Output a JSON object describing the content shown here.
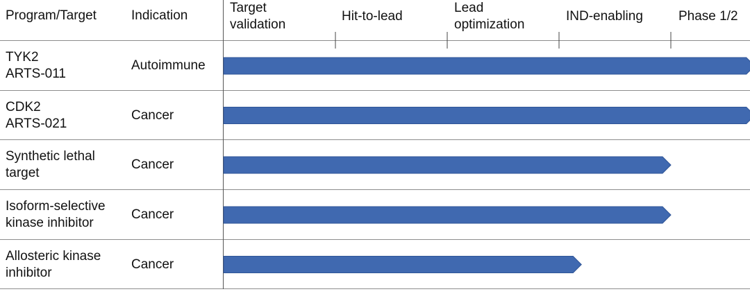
{
  "header": {
    "program": "Program/Target",
    "indication": "Indication"
  },
  "chart_data": {
    "type": "bar",
    "stages": [
      "Target\nvalidation",
      "Hit-to-lead",
      "Lead\noptimization",
      "IND-enabling",
      "Phase 1/2"
    ],
    "categories": [
      "TYK2\nARTS-011",
      "CDK2\nARTS-021",
      "Synthetic lethal\ntarget",
      "Isoform-selective\nkinase inhibitor",
      "Allosteric kinase\ninhibitor"
    ],
    "indications": [
      "Autoimmune",
      "Cancer",
      "Cancer",
      "Cancer",
      "Cancer"
    ],
    "values": [
      4.75,
      4.75,
      4.0,
      4.0,
      3.2
    ],
    "xlim": [
      0,
      5
    ],
    "bar_color": "#4069b0"
  }
}
